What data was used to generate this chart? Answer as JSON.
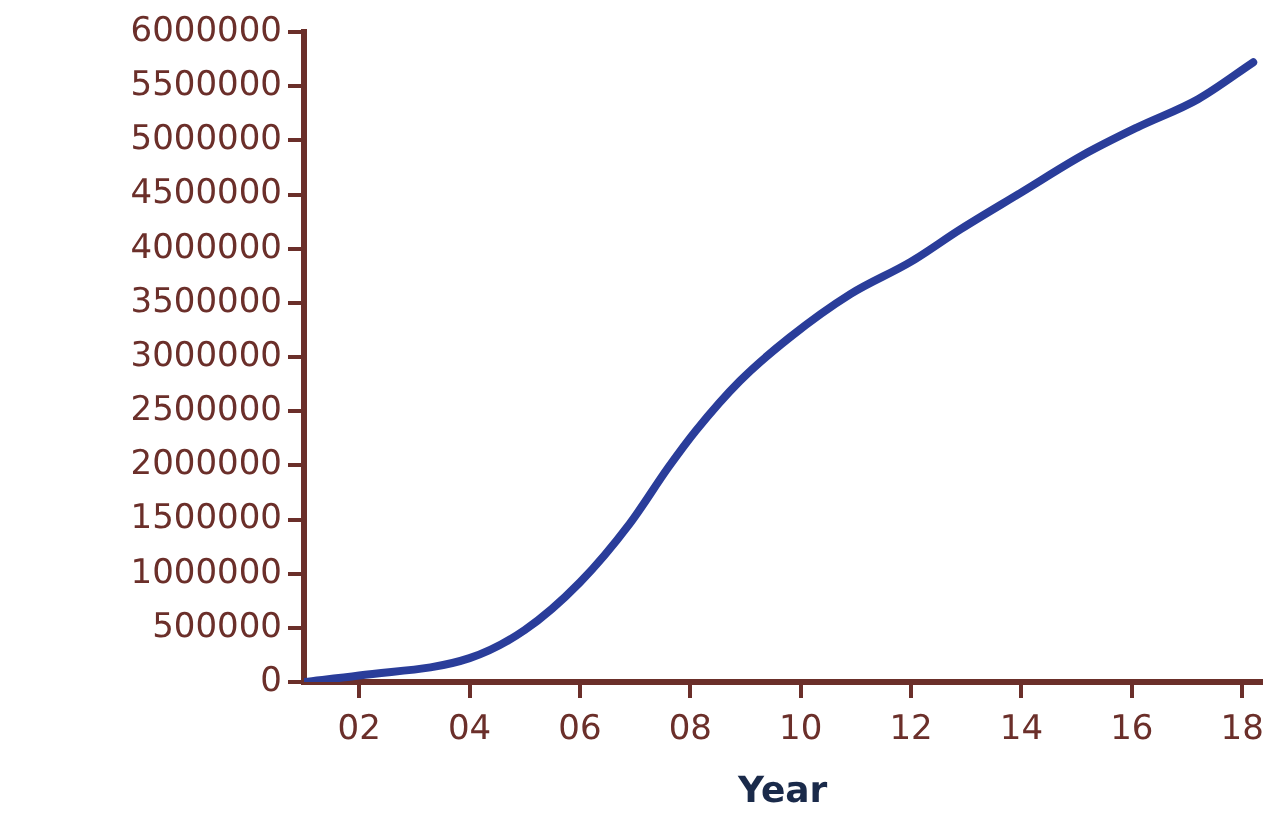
{
  "chart_data": {
    "type": "line",
    "xlabel": "Year",
    "x": [
      2001,
      2002,
      2004,
      2005,
      2006,
      2006.9,
      2007.6,
      2008.1,
      2008.9,
      2009.8,
      2010.9,
      2012,
      2012.9,
      2014,
      2015.1,
      2016.1,
      2017.2,
      2018.2
    ],
    "series": [
      {
        "color": "#2a3d9a",
        "values": [
          0,
          60000,
          220000,
          480000,
          920000,
          1460000,
          1980000,
          2320000,
          2780000,
          3180000,
          3580000,
          3880000,
          4180000,
          4520000,
          4860000,
          5120000,
          5380000,
          5720000
        ]
      }
    ],
    "xlim": [
      2001,
      2018.35
    ],
    "xticks": [
      {
        "value": 2002,
        "label": "02"
      },
      {
        "value": 2004,
        "label": "04"
      },
      {
        "value": 2006,
        "label": "06"
      },
      {
        "value": 2008,
        "label": "08"
      },
      {
        "value": 2010,
        "label": "10"
      },
      {
        "value": 2012,
        "label": "12"
      },
      {
        "value": 2014,
        "label": "14"
      },
      {
        "value": 2016,
        "label": "16"
      },
      {
        "value": 2018,
        "label": "18"
      }
    ],
    "ylim": [
      0,
      6000000
    ],
    "yticks": [
      0,
      500000,
      1000000,
      1500000,
      2000000,
      2500000,
      3000000,
      3500000,
      4000000,
      4500000,
      5000000,
      5500000,
      6000000
    ],
    "grid": false,
    "legend": false,
    "marker": "none",
    "line_style": "solid"
  }
}
